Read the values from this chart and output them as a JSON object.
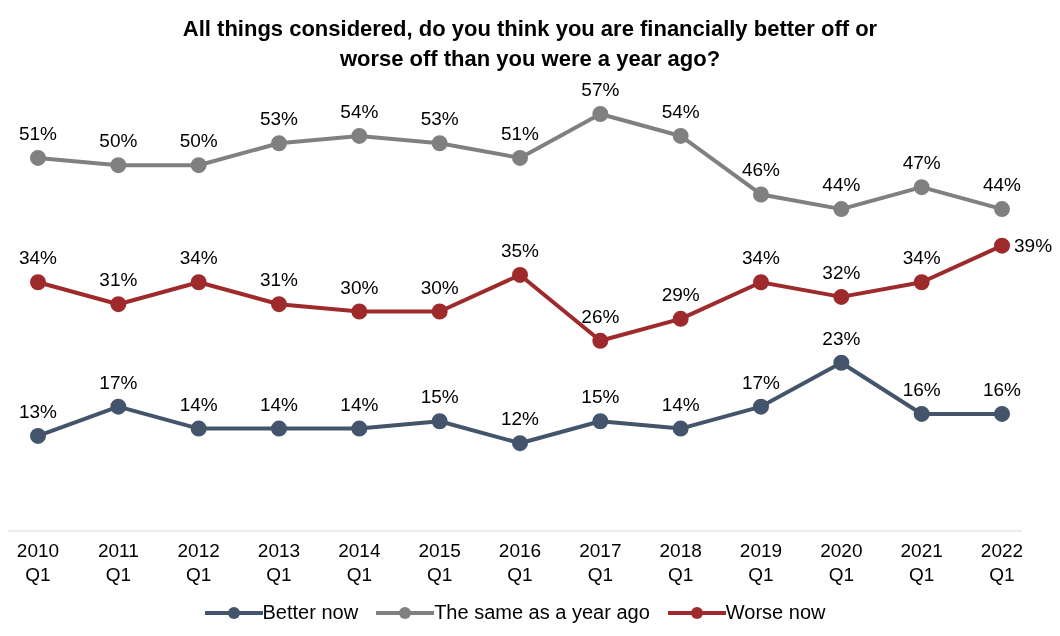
{
  "chart_data": {
    "type": "line",
    "title": "All things considered, do you think you are financially better off or worse off than you were a year ago?",
    "categories": [
      "2010 Q1",
      "2011 Q1",
      "2012 Q1",
      "2013 Q1",
      "2014 Q1",
      "2015 Q1",
      "2016 Q1",
      "2017 Q1",
      "2018 Q1",
      "2019 Q1",
      "2020 Q1",
      "2021 Q1",
      "2022 Q1"
    ],
    "legend": "bottom",
    "grid": false,
    "marker": "circle",
    "tick_labels": "x",
    "series": [
      {
        "name": "Better now",
        "color": "#44546a",
        "values": [
          13,
          17,
          14,
          14,
          14,
          15,
          12,
          15,
          14,
          17,
          23,
          16,
          16
        ],
        "value_labels": [
          "13%",
          "17%",
          "14%",
          "14%",
          "14%",
          "15%",
          "12%",
          "15%",
          "14%",
          "17%",
          "23%",
          "16%",
          "16%"
        ]
      },
      {
        "name": "The same as a year ago",
        "color": "#808080",
        "values": [
          51,
          50,
          50,
          53,
          54,
          53,
          51,
          57,
          54,
          46,
          44,
          47,
          44
        ],
        "value_labels": [
          "51%",
          "50%",
          "50%",
          "53%",
          "54%",
          "53%",
          "51%",
          "57%",
          "54%",
          "46%",
          "44%",
          "47%",
          "44%"
        ]
      },
      {
        "name": "Worse now",
        "color": "#9e2a2b",
        "values": [
          34,
          31,
          34,
          31,
          30,
          30,
          35,
          26,
          29,
          34,
          32,
          34,
          39
        ],
        "value_labels": [
          "34%",
          "31%",
          "34%",
          "31%",
          "30%",
          "30%",
          "35%",
          "26%",
          "29%",
          "34%",
          "32%",
          "34%",
          "39%"
        ]
      }
    ]
  }
}
